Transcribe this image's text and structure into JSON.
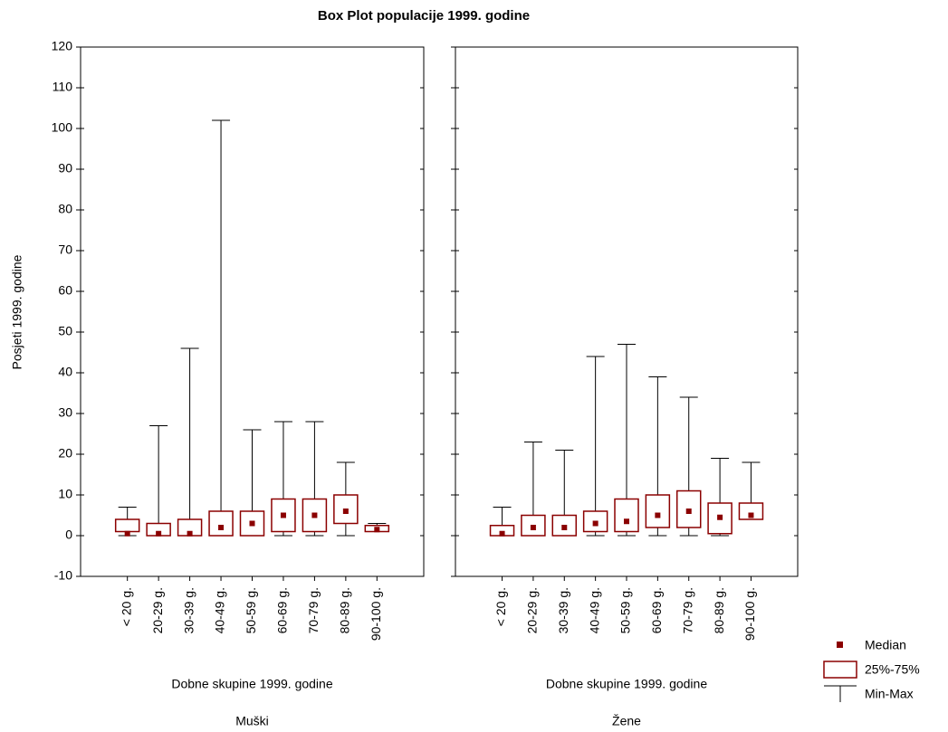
{
  "title": "Box Plot populacije 1999. godine",
  "y_label": "Posjeti 1999. godine",
  "legend": {
    "median": "Median",
    "box": "25%-75%",
    "whisker": "Min-Max"
  },
  "chart_data": [
    {
      "type": "box",
      "x_label": "Dobne skupine 1999. godine",
      "panel_label": "Muški",
      "categories": [
        "< 20 g.",
        "20-29 g.",
        "30-39 g.",
        "40-49 g.",
        "50-59 g.",
        "60-69 g.",
        "70-79 g.",
        "80-89 g.",
        "90-100 g."
      ],
      "min": [
        0,
        0,
        0,
        0,
        0,
        0,
        0,
        0,
        1
      ],
      "q1": [
        1,
        0,
        0,
        0,
        0,
        1,
        1,
        3,
        1
      ],
      "median": [
        0.5,
        0.5,
        0.5,
        2,
        3,
        5,
        5,
        6,
        1.5
      ],
      "q3": [
        4,
        3,
        4,
        6,
        6,
        9,
        9,
        10,
        2.5
      ],
      "max": [
        7,
        27,
        46,
        102,
        26,
        28,
        28,
        18,
        3
      ],
      "color": "#8b0000",
      "ylim": [
        -10,
        120
      ],
      "yticks": [
        -10,
        0,
        10,
        20,
        30,
        40,
        50,
        60,
        70,
        80,
        90,
        100,
        110,
        120
      ]
    },
    {
      "type": "box",
      "x_label": "Dobne skupine 1999. godine",
      "panel_label": "Žene",
      "categories": [
        "< 20 g.",
        "20-29 g.",
        "30-39 g.",
        "40-49 g.",
        "50-59 g.",
        "60-69 g.",
        "70-79 g.",
        "80-89 g.",
        "90-100 g."
      ],
      "min": [
        0,
        0,
        0,
        0,
        0,
        0,
        0,
        0,
        4
      ],
      "q1": [
        0,
        0,
        0,
        1,
        1,
        2,
        2,
        0.5,
        4
      ],
      "median": [
        0.5,
        2,
        2,
        3,
        3.5,
        5,
        6,
        4.5,
        5
      ],
      "q3": [
        2.5,
        5,
        5,
        6,
        9,
        10,
        11,
        8,
        8
      ],
      "max": [
        7,
        23,
        21,
        44,
        47,
        39,
        34,
        19,
        18
      ],
      "color": "#8b0000",
      "ylim": [
        -10,
        120
      ],
      "yticks": [
        -10,
        0,
        10,
        20,
        30,
        40,
        50,
        60,
        70,
        80,
        90,
        100,
        110,
        120
      ]
    }
  ]
}
